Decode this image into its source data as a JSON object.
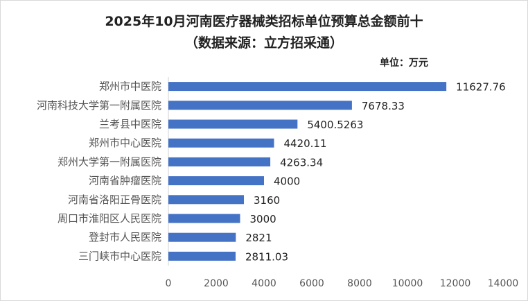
{
  "chart_data": {
    "type": "bar",
    "orientation": "horizontal",
    "title": "2025年10月河南医疗器械类招标单位预算总金额前十",
    "subtitle": "（数据来源：立方招采通）",
    "unit_label": "单位：万元",
    "categories": [
      "郑州市中医院",
      "河南科技大学第一附属医院",
      "兰考县中医院",
      "郑州市中心医院",
      "郑州大学第一附属医院",
      "河南省肿瘤医院",
      "河南省洛阳正骨医院",
      "周口市淮阳区人民医院",
      "登封市人民医院",
      "三门峡市中心医院"
    ],
    "values": [
      11627.76,
      7678.33,
      5400.5263,
      4420.11,
      4263.34,
      4000,
      3160,
      3000,
      2821,
      2811.03
    ],
    "value_labels": [
      "11627.76",
      "7678.33",
      "5400.5263",
      "4420.11",
      "4263.34",
      "4000",
      "3160",
      "3000",
      "2821",
      "2811.03"
    ],
    "xlim": [
      0,
      14000
    ],
    "xticks": [
      "0",
      "2000",
      "4000",
      "6000",
      "8000",
      "10000",
      "12000",
      "14000"
    ],
    "bar_color": "#4472C4",
    "grid": false,
    "legend": "none"
  }
}
